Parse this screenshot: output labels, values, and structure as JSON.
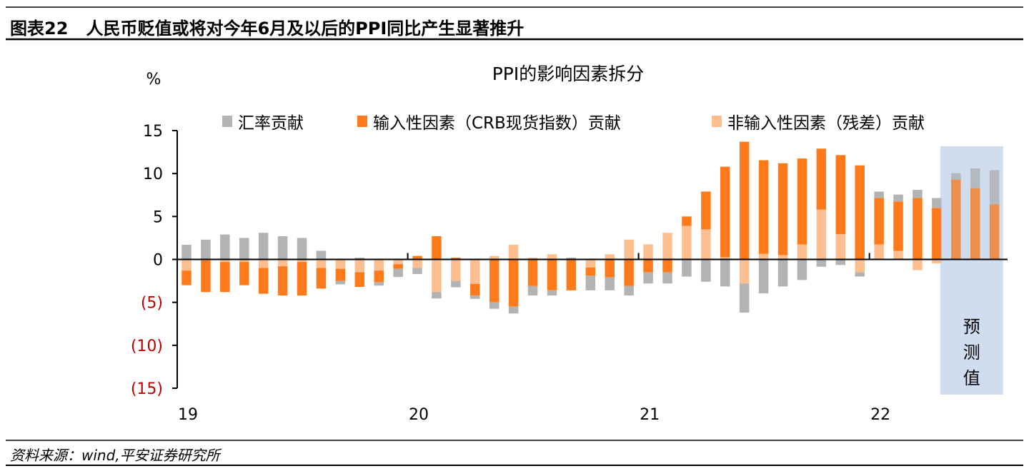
{
  "figure_label": "图表22",
  "figure_title": "人民币贬值或将对今年6月及以后的PPI同比产生显著推升",
  "source": "资料来源：wind,平安证券研究所",
  "colors": {
    "fx": "#B3B3B3",
    "crb": "#FF7A1A",
    "residual": "#FDBF8F",
    "negative_tick": "#C00000",
    "forecast_box": "#B8CCE8"
  },
  "chart_data": {
    "type": "bar",
    "stacked": true,
    "title": "PPI的影响因素拆分",
    "ylabel": "%",
    "ylim": [
      -15,
      15
    ],
    "yticks": [
      15,
      10,
      5,
      0,
      -5,
      -10,
      -15
    ],
    "ytick_labels": [
      "15",
      "10",
      "5",
      "0",
      "(5)",
      "(10)",
      "(15)"
    ],
    "xtick_labels": [
      "19",
      "20",
      "21",
      "22"
    ],
    "legend_position": "top",
    "forecast_label": "预测值",
    "forecast_start_index": 40,
    "categories": [
      "2019-01",
      "2019-02",
      "2019-03",
      "2019-04",
      "2019-05",
      "2019-06",
      "2019-07",
      "2019-08",
      "2019-09",
      "2019-10",
      "2019-11",
      "2019-12",
      "2020-01",
      "2020-02",
      "2020-03",
      "2020-04",
      "2020-05",
      "2020-06",
      "2020-07",
      "2020-08",
      "2020-09",
      "2020-10",
      "2020-11",
      "2020-12",
      "2021-01",
      "2021-02",
      "2021-03",
      "2021-04",
      "2021-05",
      "2021-06",
      "2021-07",
      "2021-08",
      "2021-09",
      "2021-10",
      "2021-11",
      "2021-12",
      "2022-01",
      "2022-02",
      "2022-03",
      "2022-04",
      "2022-05",
      "2022-06",
      "2022-07"
    ],
    "series": [
      {
        "key": "residual",
        "name": "非输入性因素（残差）贡献",
        "values": [
          -1.3,
          -0.1,
          -0.3,
          -0.3,
          -1.0,
          -0.8,
          -0.3,
          -1.0,
          -1.1,
          -1.5,
          -1.3,
          -0.55,
          -1.0,
          -3.8,
          -2.5,
          -2.85,
          0.4,
          1.7,
          0.2,
          0.6,
          0,
          -0.95,
          0.6,
          2.3,
          1.75,
          3.1,
          3.9,
          3.5,
          0.25,
          -2.8,
          0.65,
          0.5,
          1.75,
          5.8,
          2.95,
          -1.5,
          1.75,
          1.0,
          -1.25,
          -0.45,
          0,
          0,
          0
        ]
      },
      {
        "key": "crb",
        "name": "输入性因素（CRB现货指数）贡献",
        "values": [
          -1.7,
          -3.7,
          -3.5,
          -2.7,
          -3.0,
          -3.4,
          -3.9,
          -2.4,
          -1.4,
          -1.7,
          -1.35,
          -0.55,
          0.4,
          2.7,
          0.2,
          -1.35,
          -5.0,
          -5.5,
          -3.1,
          -3.6,
          -3.6,
          -0.95,
          -2.1,
          -3.1,
          -1.5,
          -1.5,
          1.1,
          4.4,
          10.55,
          13.7,
          10.9,
          10.7,
          10.0,
          7.1,
          9.2,
          10.95,
          5.4,
          5.75,
          7.15,
          6.0,
          9.3,
          8.3,
          6.4
        ]
      },
      {
        "key": "fx",
        "name": "汇率贡献",
        "values": [
          1.7,
          2.3,
          2.9,
          2.5,
          3.1,
          2.7,
          2.5,
          1.0,
          -0.4,
          0.2,
          -0.4,
          -0.95,
          -0.7,
          -0.75,
          -0.75,
          -0.4,
          -0.75,
          -0.8,
          -1.1,
          -0.6,
          0.2,
          -1.7,
          -1.5,
          -1.1,
          -1.3,
          -1.3,
          -2.0,
          -2.6,
          -3.15,
          -3.4,
          -3.95,
          -3.15,
          -2.4,
          -0.85,
          -0.65,
          -0.5,
          0.75,
          0.8,
          0.95,
          1.15,
          0.75,
          2.3,
          4.0
        ]
      }
    ],
    "legend_order": [
      "fx",
      "crb",
      "residual"
    ]
  }
}
